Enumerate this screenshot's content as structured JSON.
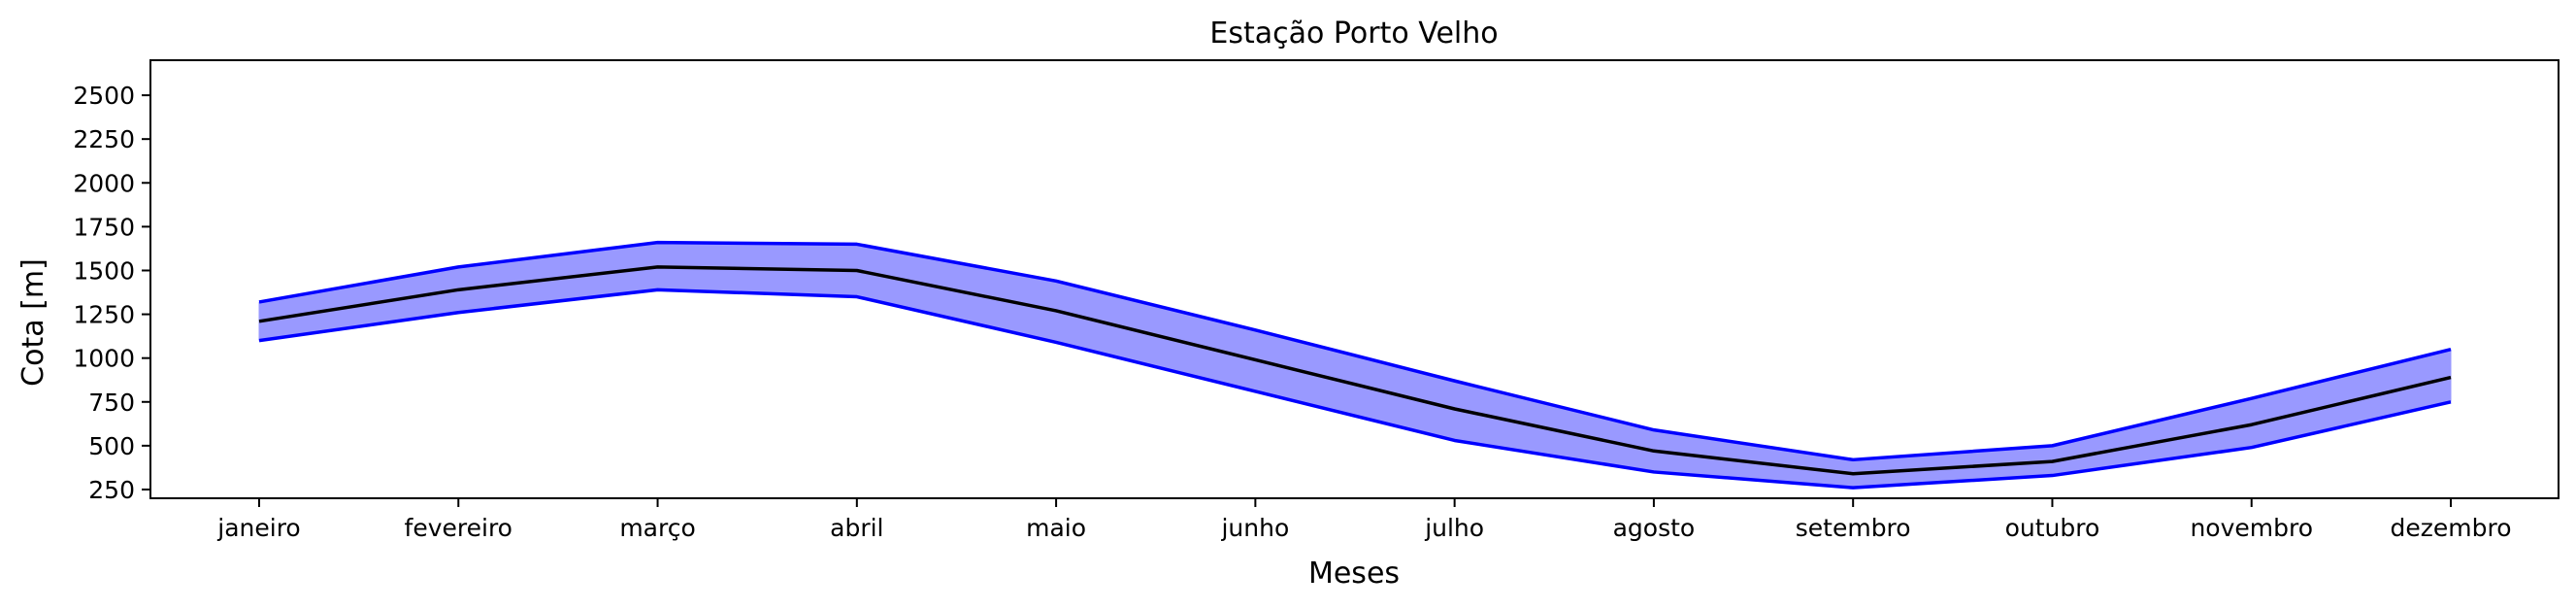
{
  "chart_data": {
    "type": "area",
    "title": "Estação Porto Velho",
    "xlabel": "Meses",
    "ylabel": "Cota [m]",
    "categories": [
      "janeiro",
      "fevereiro",
      "março",
      "abril",
      "maio",
      "junho",
      "julho",
      "agosto",
      "setembro",
      "outubro",
      "novembro",
      "dezembro"
    ],
    "ylim": [
      200,
      2700
    ],
    "yticks": [
      250,
      500,
      750,
      1000,
      1250,
      1500,
      1750,
      2000,
      2250,
      2500
    ],
    "series": [
      {
        "values": [
          1320,
          1520,
          1660,
          1650,
          1440,
          1160,
          870,
          590,
          420,
          500,
          770,
          1050
        ],
        "color": "#0000ff"
      },
      {
        "values": [
          1210,
          1390,
          1520,
          1500,
          1270,
          990,
          710,
          470,
          340,
          410,
          620,
          890
        ],
        "color": "#000000"
      },
      {
        "values": [
          1100,
          1260,
          1390,
          1350,
          1090,
          810,
          530,
          350,
          260,
          330,
          490,
          750
        ],
        "color": "#0000ff"
      }
    ],
    "fill_color": "#9999ff",
    "grid": false
  }
}
